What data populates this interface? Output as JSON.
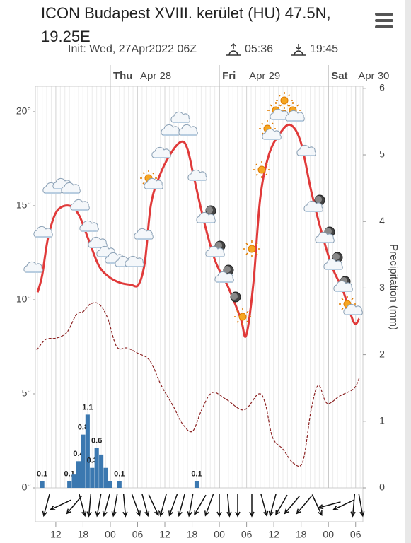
{
  "header": {
    "title": "ICON Budapest XVIII. kerület (HU) 47.5N, 19.25E",
    "init": "Init: Wed, 27Apr2022 06Z",
    "sunrise": "05:36",
    "sunset": "19:45"
  },
  "chart_data": {
    "type": "line",
    "xlim": [
      7.5,
      79.6
    ],
    "xticks": [
      {
        "value": 12,
        "label": "12"
      },
      {
        "value": 18,
        "label": "18"
      },
      {
        "value": 24,
        "label": "00"
      },
      {
        "value": 30,
        "label": "06"
      },
      {
        "value": 36,
        "label": "12"
      },
      {
        "value": 42,
        "label": "18"
      },
      {
        "value": 48,
        "label": "00"
      },
      {
        "value": 54,
        "label": "06"
      },
      {
        "value": 60,
        "label": "12"
      },
      {
        "value": 66,
        "label": "18"
      },
      {
        "value": 72,
        "label": "00"
      },
      {
        "value": 78,
        "label": "06"
      }
    ],
    "day_ticks": [
      {
        "value": 24,
        "label": "Thu",
        "date": "Apr 28"
      },
      {
        "value": 48,
        "label": "Fri",
        "date": "Apr 29"
      },
      {
        "value": 72,
        "label": "Sat",
        "date": "Apr 30"
      }
    ],
    "ylim": [
      0,
      21.35
    ],
    "yticks": [
      {
        "value": 0,
        "label": "0°"
      },
      {
        "value": 5,
        "label": "5°"
      },
      {
        "value": 10,
        "label": "10°"
      },
      {
        "value": 15,
        "label": "15°"
      },
      {
        "value": 20,
        "label": "20°"
      }
    ],
    "y2lim": [
      0,
      6.03
    ],
    "y2ticks": [
      0,
      1,
      2,
      3,
      4,
      5,
      6
    ],
    "y2label": "Precipitation (mm)",
    "series": [
      {
        "type": "line",
        "color": "#e03a3a",
        "x": [
          8,
          9,
          10.3,
          12.2,
          15,
          17.1,
          19.2,
          21.5,
          23.8,
          26.2,
          28.5,
          30.2,
          31.6,
          32.9,
          34.7,
          37.1,
          39.6,
          41,
          42.5,
          44.9,
          47.2,
          49.9,
          52.7,
          53.9,
          55.5,
          57,
          58.9,
          61.2,
          63.6,
          65.9,
          68.2,
          70.6,
          72.9,
          75.2,
          77.6,
          78.8
        ],
        "values": [
          10.4,
          11.3,
          13.3,
          14.7,
          15.0,
          14.5,
          13.2,
          11.8,
          11.2,
          10.9,
          10.8,
          10.8,
          12.0,
          15.0,
          16.5,
          17.7,
          18.4,
          18.0,
          16.4,
          13.9,
          12.0,
          10.7,
          9.0,
          8.1,
          10.9,
          15.4,
          17.7,
          18.8,
          19.3,
          18.4,
          15.8,
          13.5,
          11.7,
          10.5,
          8.8,
          9.0
        ]
      },
      {
        "type": "line",
        "dashed": true,
        "axis": "y2",
        "color": "#8b2020",
        "x": [
          7.8,
          9.8,
          12.2,
          14.5,
          16.5,
          18.1,
          19.6,
          21.5,
          23.4,
          25.4,
          27.7,
          30.1,
          32.7,
          35.2,
          37.9,
          39.9,
          42.1,
          44.1,
          46.4,
          49.5,
          53.4,
          56.6,
          58.1,
          59.7,
          62,
          64.3,
          66.4,
          68.2,
          69.8,
          71.7,
          74.5,
          77.6,
          78.8
        ],
        "values": [
          2.07,
          2.23,
          2.25,
          2.34,
          2.6,
          2.65,
          2.76,
          2.76,
          2.55,
          2.12,
          2.1,
          2.02,
          1.91,
          1.54,
          1.22,
          0.96,
          0.85,
          1.17,
          1.43,
          1.33,
          1.17,
          1.41,
          1.27,
          0.76,
          0.58,
          0.37,
          0.4,
          1.17,
          1.54,
          1.27,
          1.38,
          1.49,
          1.65
        ]
      },
      {
        "type": "bar",
        "axis": "y2",
        "color": "#3b78b0",
        "x": [
          9,
          15,
          16,
          17,
          18,
          19,
          20,
          21,
          22,
          23,
          24,
          26,
          43
        ],
        "values": [
          0.1,
          0.1,
          0.2,
          0.4,
          0.8,
          1.1,
          0.3,
          0.6,
          0.5,
          0.3,
          0.1,
          0.1,
          0.1
        ],
        "value_labels": [
          "0.1",
          "0.1",
          null,
          "0.4",
          "0.8",
          "1.1",
          "0.3",
          "0.6",
          null,
          null,
          null,
          "0.1",
          "0.1"
        ]
      }
    ]
  }
}
